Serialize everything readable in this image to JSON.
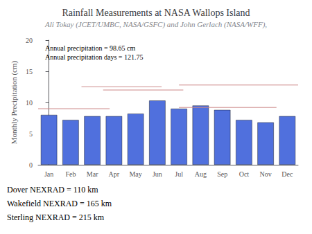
{
  "chart_data": {
    "type": "bar",
    "title": "Rainfall Measurements at NASA Wallops Island",
    "subtitle": "Ali Tokay (JCET/UMBC, NASA/GSFC) and John Gerlach (NASA/WFF),",
    "categories": [
      "Jan",
      "Feb",
      "Mar",
      "Apr",
      "May",
      "Jun",
      "Jul",
      "Aug",
      "Sep",
      "Oct",
      "Nov",
      "Dec"
    ],
    "values": [
      8.0,
      7.2,
      7.8,
      7.8,
      8.2,
      10.3,
      9.0,
      9.5,
      8.8,
      7.2,
      6.8,
      7.8
    ],
    "ylabel": "Monthly Precipitation (cm)",
    "ylim": [
      0,
      20
    ],
    "yticks": [
      0,
      5,
      10,
      15,
      20
    ],
    "grid": false,
    "annotations": [
      "Annual precipitation = 98.65 cm",
      "Annual precipitation days = 121.75"
    ],
    "bottom_text": [
      "Dover NEXRAD = 110 km",
      "Wakefield NEXRAD = 165 km",
      "Sterling NEXRAD = 215 km"
    ],
    "hlines": [
      {
        "y": 9.0,
        "x1": -0.5,
        "x2": 2.8,
        "color": "#cc8888"
      },
      {
        "y": 12.5,
        "x1": 1.5,
        "x2": 5.2,
        "color": "#cc8888"
      },
      {
        "y": 12.0,
        "x1": 2.5,
        "x2": 6.2,
        "color": "#cc8888"
      },
      {
        "y": 9.2,
        "x1": 6.0,
        "x2": 10.5,
        "color": "#cc8888"
      },
      {
        "y": 12.8,
        "x1": 6.0,
        "x2": 11.5,
        "color": "#cc8888"
      }
    ]
  }
}
